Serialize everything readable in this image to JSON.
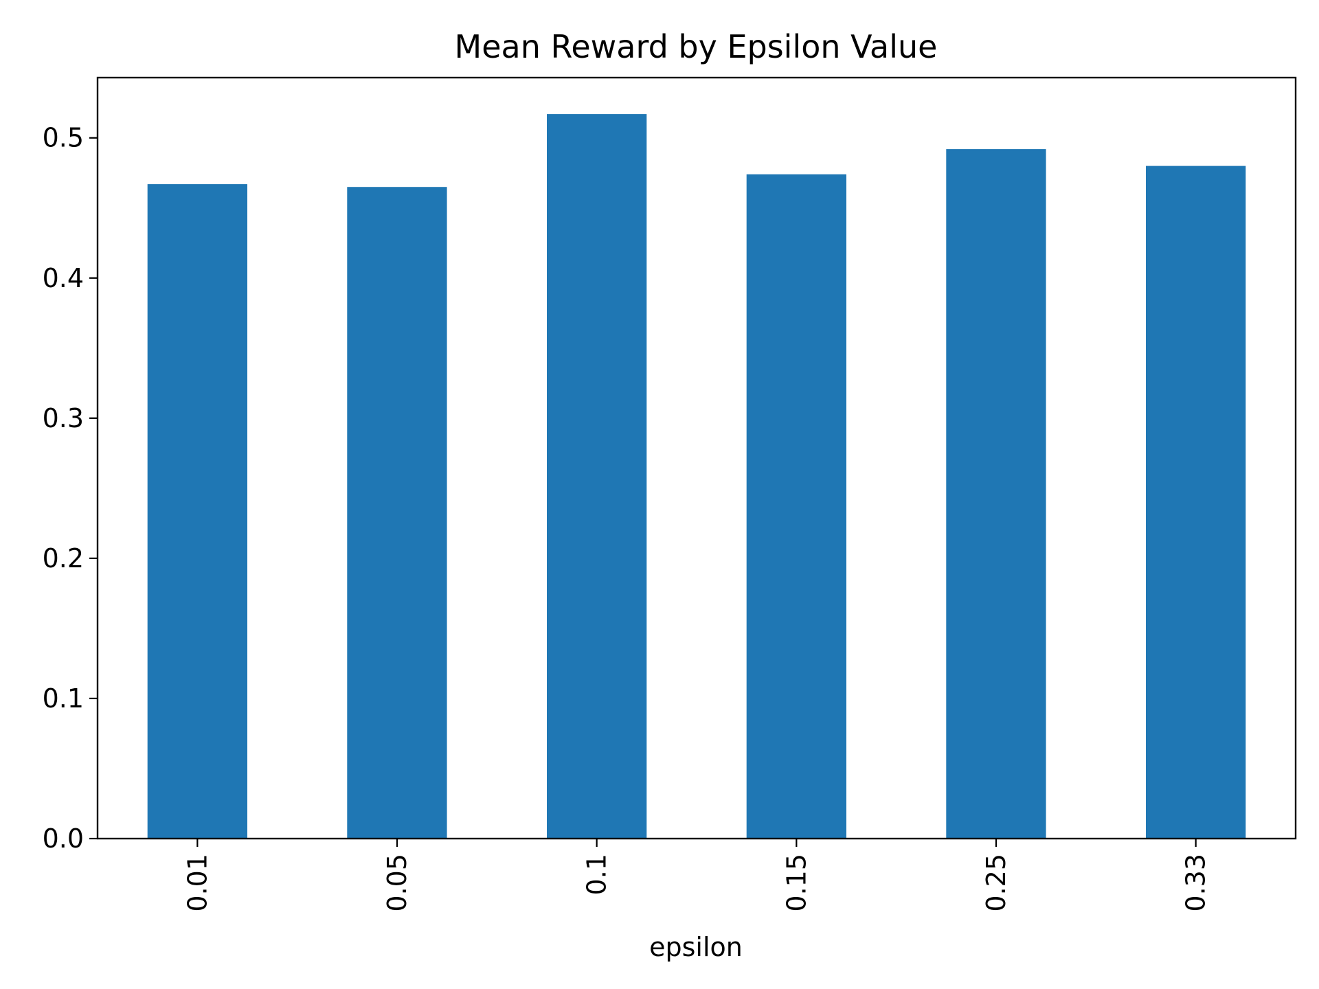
{
  "chart_data": {
    "type": "bar",
    "title": "Mean Reward by Epsilon Value",
    "xlabel": "epsilon",
    "ylabel": "",
    "categories": [
      "0.01",
      "0.05",
      "0.1",
      "0.15",
      "0.25",
      "0.33"
    ],
    "values": [
      0.467,
      0.465,
      0.517,
      0.474,
      0.492,
      0.48
    ],
    "ylim": [
      0,
      0.543
    ],
    "yticks": [
      "0.0",
      "0.1",
      "0.2",
      "0.3",
      "0.4",
      "0.5"
    ],
    "x_tick_rotation": "vertical",
    "grid": false,
    "legend": "none",
    "bar_color": "#1f77b4"
  }
}
